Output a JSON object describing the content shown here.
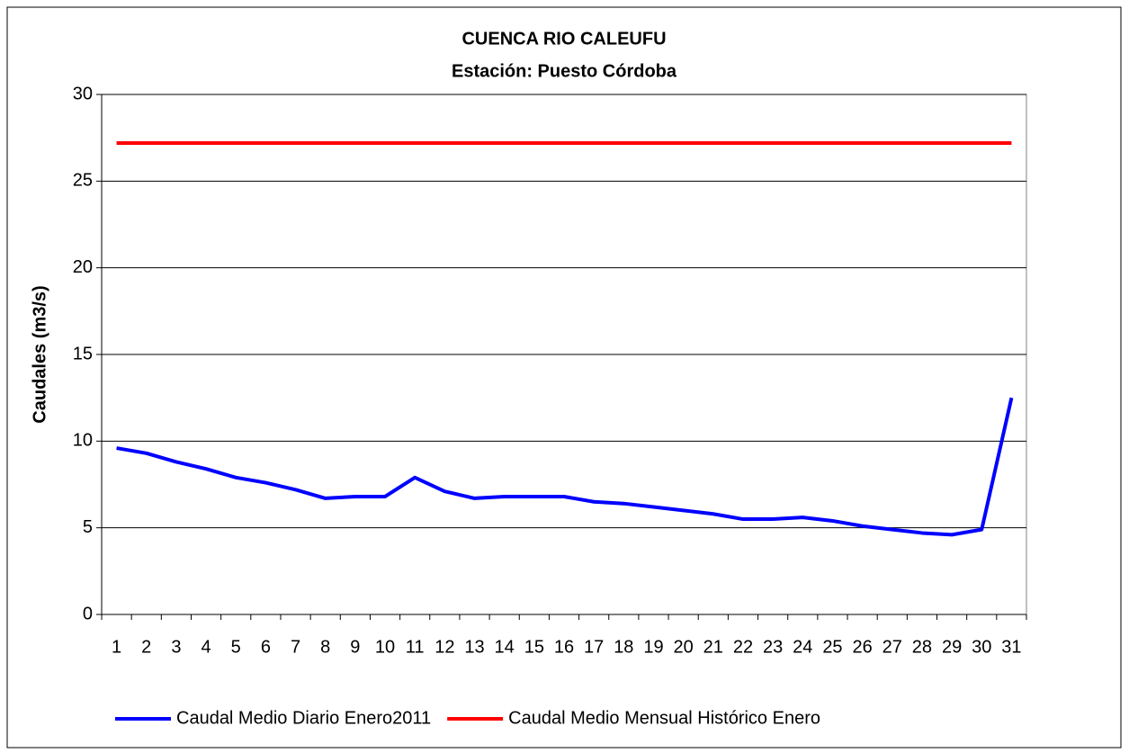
{
  "chart_data": {
    "type": "line",
    "title": "CUENCA RIO CALEUFU",
    "subtitle": "Estación: Puesto Córdoba",
    "y_label": "Caudales (m3/s)",
    "categories": [
      "1",
      "2",
      "3",
      "4",
      "5",
      "6",
      "7",
      "8",
      "9",
      "10",
      "11",
      "12",
      "13",
      "14",
      "15",
      "16",
      "17",
      "18",
      "19",
      "20",
      "21",
      "22",
      "23",
      "24",
      "25",
      "26",
      "27",
      "28",
      "29",
      "30",
      "31"
    ],
    "series": [
      {
        "name": "Caudal Medio Diario Enero2011",
        "color": "#0000ff",
        "values": [
          9.6,
          9.3,
          8.8,
          8.4,
          7.9,
          7.6,
          7.2,
          6.7,
          6.8,
          6.8,
          7.9,
          7.1,
          6.7,
          6.8,
          6.8,
          6.8,
          6.5,
          6.4,
          6.2,
          6.0,
          5.8,
          5.5,
          5.5,
          5.6,
          5.4,
          5.1,
          4.9,
          4.7,
          4.6,
          4.9,
          12.5
        ]
      },
      {
        "name": "Caudal Medio Mensual Histórico Enero",
        "color": "#ff0000",
        "values": [
          27.2,
          27.2,
          27.2,
          27.2,
          27.2,
          27.2,
          27.2,
          27.2,
          27.2,
          27.2,
          27.2,
          27.2,
          27.2,
          27.2,
          27.2,
          27.2,
          27.2,
          27.2,
          27.2,
          27.2,
          27.2,
          27.2,
          27.2,
          27.2,
          27.2,
          27.2,
          27.2,
          27.2,
          27.2,
          27.2,
          27.2
        ]
      }
    ],
    "ylim": [
      0,
      30
    ],
    "yticks": [
      0,
      5,
      10,
      15,
      20,
      25,
      30
    ],
    "grid": true,
    "legend": "bottom"
  }
}
